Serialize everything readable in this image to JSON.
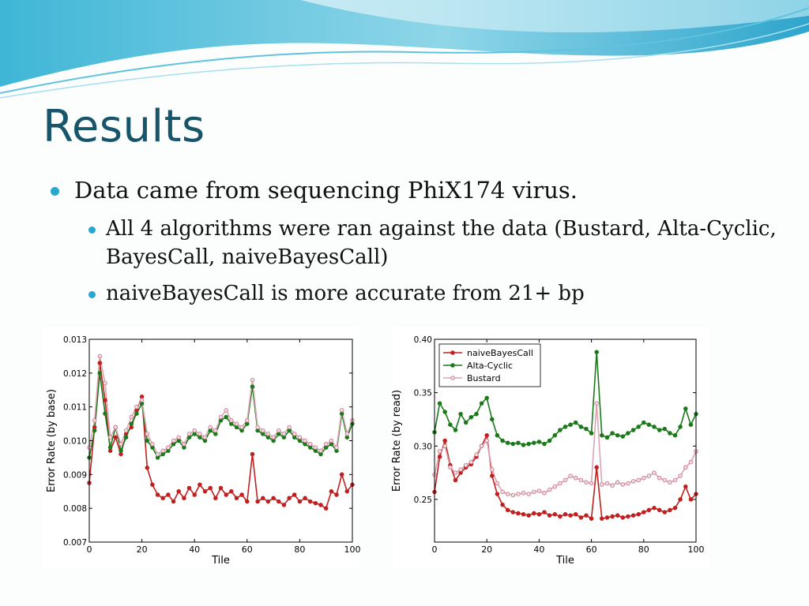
{
  "slide": {
    "title": "Results",
    "bullets": [
      {
        "text": "Data came from sequencing PhiX174 virus."
      },
      {
        "text": "All 4 algorithms were ran against the data (Bustard, Alta-Cyclic, BayesCall, naiveBayesCall)"
      },
      {
        "text": "naiveBayesCall is more accurate from 21+ bp"
      }
    ],
    "accent_color": "#29a7cf",
    "title_color": "#17556b"
  },
  "chart_data": [
    {
      "type": "line",
      "xlabel": "Tile",
      "ylabel": "Error Rate (by base)",
      "xlim": [
        0,
        100
      ],
      "ylim": [
        0.007,
        0.013
      ],
      "xticks": [
        0,
        20,
        40,
        60,
        80,
        100
      ],
      "yticks": [
        0.007,
        0.008,
        0.009,
        0.01,
        0.011,
        0.012,
        0.013
      ],
      "ytick_labels": [
        "0.007",
        "0.008",
        "0.009",
        "0.010",
        "0.011",
        "0.012",
        "0.013"
      ],
      "legend": null,
      "x": [
        0,
        2,
        4,
        6,
        8,
        10,
        12,
        14,
        16,
        18,
        20,
        22,
        24,
        26,
        28,
        30,
        32,
        34,
        36,
        38,
        40,
        42,
        44,
        46,
        48,
        50,
        52,
        54,
        56,
        58,
        60,
        62,
        64,
        66,
        68,
        70,
        72,
        74,
        76,
        78,
        80,
        82,
        84,
        86,
        88,
        90,
        92,
        94,
        96,
        98,
        100
      ],
      "series": [
        {
          "color": "#c0201f",
          "values": [
            0.00875,
            0.0104,
            0.0123,
            0.0112,
            0.0097,
            0.0101,
            0.0096,
            0.0102,
            0.0104,
            0.0109,
            0.0113,
            0.0092,
            0.0087,
            0.0084,
            0.0083,
            0.0084,
            0.0082,
            0.0085,
            0.0083,
            0.0086,
            0.0084,
            0.0087,
            0.0085,
            0.0086,
            0.0083,
            0.0086,
            0.0084,
            0.0085,
            0.0083,
            0.0084,
            0.0082,
            0.0096,
            0.0082,
            0.0083,
            0.0082,
            0.0083,
            0.0082,
            0.0081,
            0.0083,
            0.0084,
            0.0082,
            0.0083,
            0.0082,
            0.00815,
            0.0081,
            0.008,
            0.0085,
            0.0084,
            0.009,
            0.0085,
            0.0087
          ]
        },
        {
          "color": "#1a7a1a",
          "values": [
            0.0095,
            0.0103,
            0.012,
            0.0108,
            0.0098,
            0.0104,
            0.0097,
            0.0101,
            0.0105,
            0.0108,
            0.0111,
            0.01,
            0.0098,
            0.0095,
            0.0096,
            0.0097,
            0.0099,
            0.01,
            0.0098,
            0.0101,
            0.0102,
            0.0101,
            0.01,
            0.0103,
            0.0102,
            0.0106,
            0.0107,
            0.0105,
            0.0104,
            0.0103,
            0.0105,
            0.0116,
            0.0103,
            0.0102,
            0.0101,
            0.01,
            0.0102,
            0.0101,
            0.0103,
            0.0101,
            0.01,
            0.0099,
            0.0098,
            0.0097,
            0.0096,
            0.0098,
            0.0099,
            0.0097,
            0.0108,
            0.0101,
            0.0105
          ]
        },
        {
          "color": "#d9a5b3",
          "marker_color": "#c97a8e",
          "values": [
            0.0098,
            0.0106,
            0.0125,
            0.0117,
            0.0101,
            0.0104,
            0.0099,
            0.0103,
            0.0107,
            0.011,
            0.0112,
            0.0102,
            0.0099,
            0.0096,
            0.0097,
            0.0098,
            0.01,
            0.0101,
            0.0099,
            0.0102,
            0.0103,
            0.0102,
            0.0101,
            0.0104,
            0.0103,
            0.0107,
            0.0109,
            0.0106,
            0.0105,
            0.0104,
            0.0106,
            0.0118,
            0.0104,
            0.0103,
            0.0102,
            0.0101,
            0.0103,
            0.0102,
            0.0104,
            0.0102,
            0.0101,
            0.01,
            0.0099,
            0.0098,
            0.0097,
            0.0099,
            0.01,
            0.0098,
            0.0109,
            0.0102,
            0.0106
          ]
        }
      ]
    },
    {
      "type": "line",
      "xlabel": "Tile",
      "ylabel": "Error Rate (by read)",
      "xlim": [
        0,
        100
      ],
      "ylim": [
        0.21,
        0.4
      ],
      "xticks": [
        0,
        20,
        40,
        60,
        80,
        100
      ],
      "yticks": [
        0.25,
        0.3,
        0.35,
        0.4
      ],
      "ytick_labels": [
        "0.25",
        "0.30",
        "0.35",
        "0.40"
      ],
      "legend": "top-left",
      "x": [
        0,
        2,
        4,
        6,
        8,
        10,
        12,
        14,
        16,
        18,
        20,
        22,
        24,
        26,
        28,
        30,
        32,
        34,
        36,
        38,
        40,
        42,
        44,
        46,
        48,
        50,
        52,
        54,
        56,
        58,
        60,
        62,
        64,
        66,
        68,
        70,
        72,
        74,
        76,
        78,
        80,
        82,
        84,
        86,
        88,
        90,
        92,
        94,
        96,
        98,
        100
      ],
      "series": [
        {
          "name": "naiveBayesCall",
          "color": "#c0201f",
          "values": [
            0.257,
            0.29,
            0.305,
            0.282,
            0.268,
            0.275,
            0.28,
            0.283,
            0.29,
            0.3,
            0.31,
            0.272,
            0.255,
            0.245,
            0.24,
            0.238,
            0.237,
            0.236,
            0.235,
            0.237,
            0.236,
            0.238,
            0.235,
            0.236,
            0.234,
            0.236,
            0.235,
            0.236,
            0.233,
            0.235,
            0.232,
            0.28,
            0.232,
            0.233,
            0.234,
            0.235,
            0.233,
            0.234,
            0.235,
            0.236,
            0.238,
            0.24,
            0.242,
            0.24,
            0.238,
            0.24,
            0.242,
            0.25,
            0.262,
            0.25,
            0.255
          ]
        },
        {
          "name": "Alta-Cyclic",
          "color": "#1a7a1a",
          "values": [
            0.313,
            0.34,
            0.332,
            0.32,
            0.315,
            0.33,
            0.322,
            0.327,
            0.33,
            0.34,
            0.345,
            0.325,
            0.31,
            0.305,
            0.303,
            0.302,
            0.303,
            0.301,
            0.302,
            0.303,
            0.304,
            0.302,
            0.305,
            0.31,
            0.315,
            0.318,
            0.32,
            0.322,
            0.318,
            0.316,
            0.312,
            0.388,
            0.31,
            0.308,
            0.312,
            0.31,
            0.309,
            0.312,
            0.315,
            0.318,
            0.322,
            0.32,
            0.318,
            0.315,
            0.316,
            0.312,
            0.31,
            0.318,
            0.335,
            0.32,
            0.33
          ]
        },
        {
          "name": "Bustard",
          "color": "#d9a5b3",
          "marker_color": "#c97a8e",
          "values": [
            0.273,
            0.295,
            0.3,
            0.28,
            0.275,
            0.278,
            0.282,
            0.285,
            0.292,
            0.3,
            0.305,
            0.278,
            0.265,
            0.257,
            0.255,
            0.254,
            0.255,
            0.256,
            0.255,
            0.257,
            0.258,
            0.256,
            0.259,
            0.262,
            0.265,
            0.268,
            0.272,
            0.27,
            0.268,
            0.266,
            0.265,
            0.34,
            0.264,
            0.265,
            0.263,
            0.266,
            0.264,
            0.265,
            0.267,
            0.268,
            0.27,
            0.272,
            0.275,
            0.27,
            0.268,
            0.266,
            0.268,
            0.272,
            0.28,
            0.285,
            0.295
          ]
        }
      ]
    }
  ]
}
